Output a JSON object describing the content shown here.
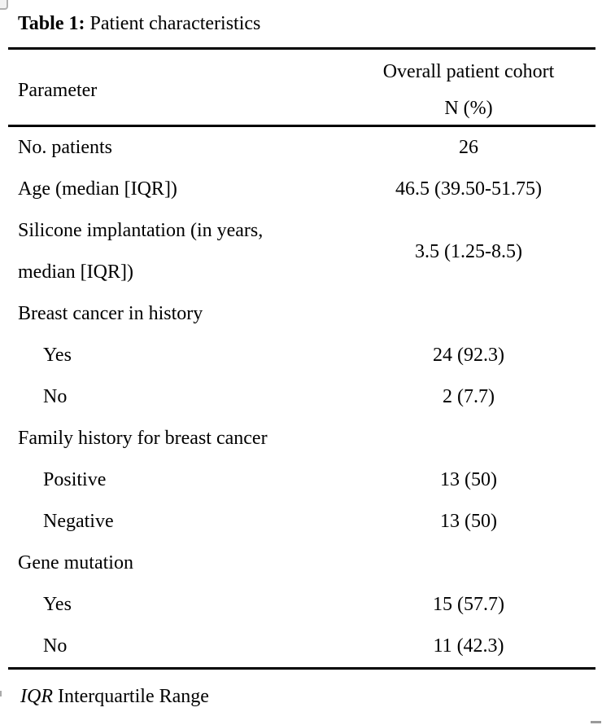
{
  "title": {
    "label_bold": "Table 1:",
    "label_rest": " Patient characteristics"
  },
  "header": {
    "parameter": "Parameter",
    "cohort_line1": "Overall patient cohort",
    "cohort_line2": "N (%)"
  },
  "table": {
    "rows": [
      {
        "label": "No. patients",
        "value": "26",
        "indent": false,
        "two_line": false
      },
      {
        "label": "Age (median [IQR])",
        "value": "46.5 (39.50-51.75)",
        "indent": false,
        "two_line": false
      },
      {
        "label": "Silicone implantation (in years,\nmedian [IQR])",
        "value": "3.5 (1.25-8.5)",
        "indent": false,
        "two_line": true
      },
      {
        "label": "Breast cancer in history",
        "value": "",
        "indent": false,
        "two_line": false
      },
      {
        "label": "Yes",
        "value": "24 (92.3)",
        "indent": true,
        "two_line": false
      },
      {
        "label": "No",
        "value": "2 (7.7)",
        "indent": true,
        "two_line": false
      },
      {
        "label": "Family history for breast cancer",
        "value": "",
        "indent": false,
        "two_line": false
      },
      {
        "label": "Positive",
        "value": "13 (50)",
        "indent": true,
        "two_line": false
      },
      {
        "label": "Negative",
        "value": "13 (50)",
        "indent": true,
        "two_line": false
      },
      {
        "label": "Gene mutation",
        "value": "",
        "indent": false,
        "two_line": false
      },
      {
        "label": "Yes",
        "value": "15 (57.7)",
        "indent": true,
        "two_line": false
      },
      {
        "label": "No",
        "value": "11 (42.3)",
        "indent": true,
        "two_line": false
      }
    ]
  },
  "footnote": {
    "abbr": "IQR",
    "text": " Interquartile Range"
  },
  "colors": {
    "text": "#000000",
    "background": "#ffffff",
    "rule": "#000000",
    "handle_border": "#b0b0b0"
  }
}
